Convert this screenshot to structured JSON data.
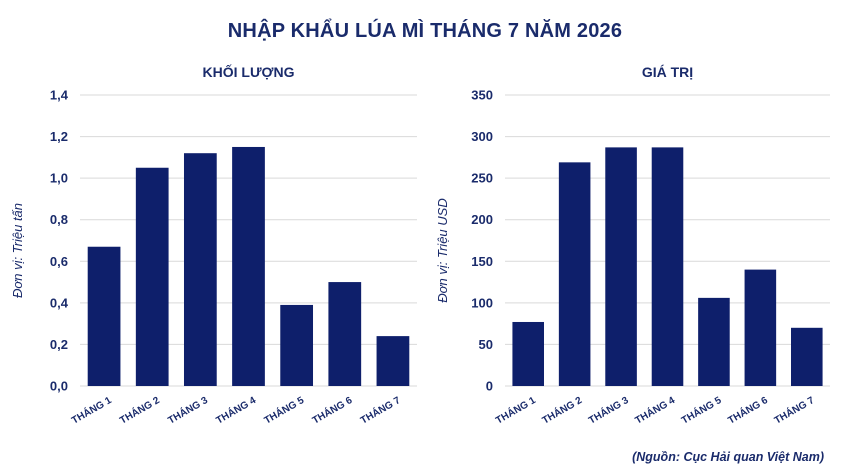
{
  "title": "NHẬP KHẨU LÚA MÌ THÁNG 7 NĂM 2026",
  "source": "(Nguồn: Cục Hải quan Việt Nam)",
  "colors": {
    "bar": "#0e1f6b",
    "text": "#1a2b6b",
    "grid": "#d9d9d9"
  },
  "chart_data": [
    {
      "type": "bar",
      "title": "KHỐI LƯỢNG",
      "ylabel": "Đơn vị: Triệu tấn",
      "xlabel": "",
      "categories": [
        "THÁNG 1",
        "THÁNG 2",
        "THÁNG 3",
        "THÁNG 4",
        "THÁNG 5",
        "THÁNG 6",
        "THÁNG 7"
      ],
      "values": [
        0.67,
        1.05,
        1.12,
        1.15,
        0.39,
        0.5,
        0.24
      ],
      "ylim": [
        0,
        1.4
      ],
      "yticks": [
        "0,0",
        "0,2",
        "0,4",
        "0,6",
        "0,8",
        "1,0",
        "1,2",
        "1,4"
      ],
      "grid": true
    },
    {
      "type": "bar",
      "title": "GIÁ TRỊ",
      "ylabel": "Đơn vị: Triệu USD",
      "xlabel": "",
      "categories": [
        "THÁNG 1",
        "THÁNG 2",
        "THÁNG 3",
        "THÁNG 4",
        "THÁNG 5",
        "THÁNG 6",
        "THÁNG 7"
      ],
      "values": [
        77,
        269,
        287,
        287,
        106,
        140,
        70
      ],
      "ylim": [
        0,
        350
      ],
      "yticks": [
        "0",
        "50",
        "100",
        "150",
        "200",
        "250",
        "300",
        "350"
      ],
      "grid": true
    }
  ]
}
